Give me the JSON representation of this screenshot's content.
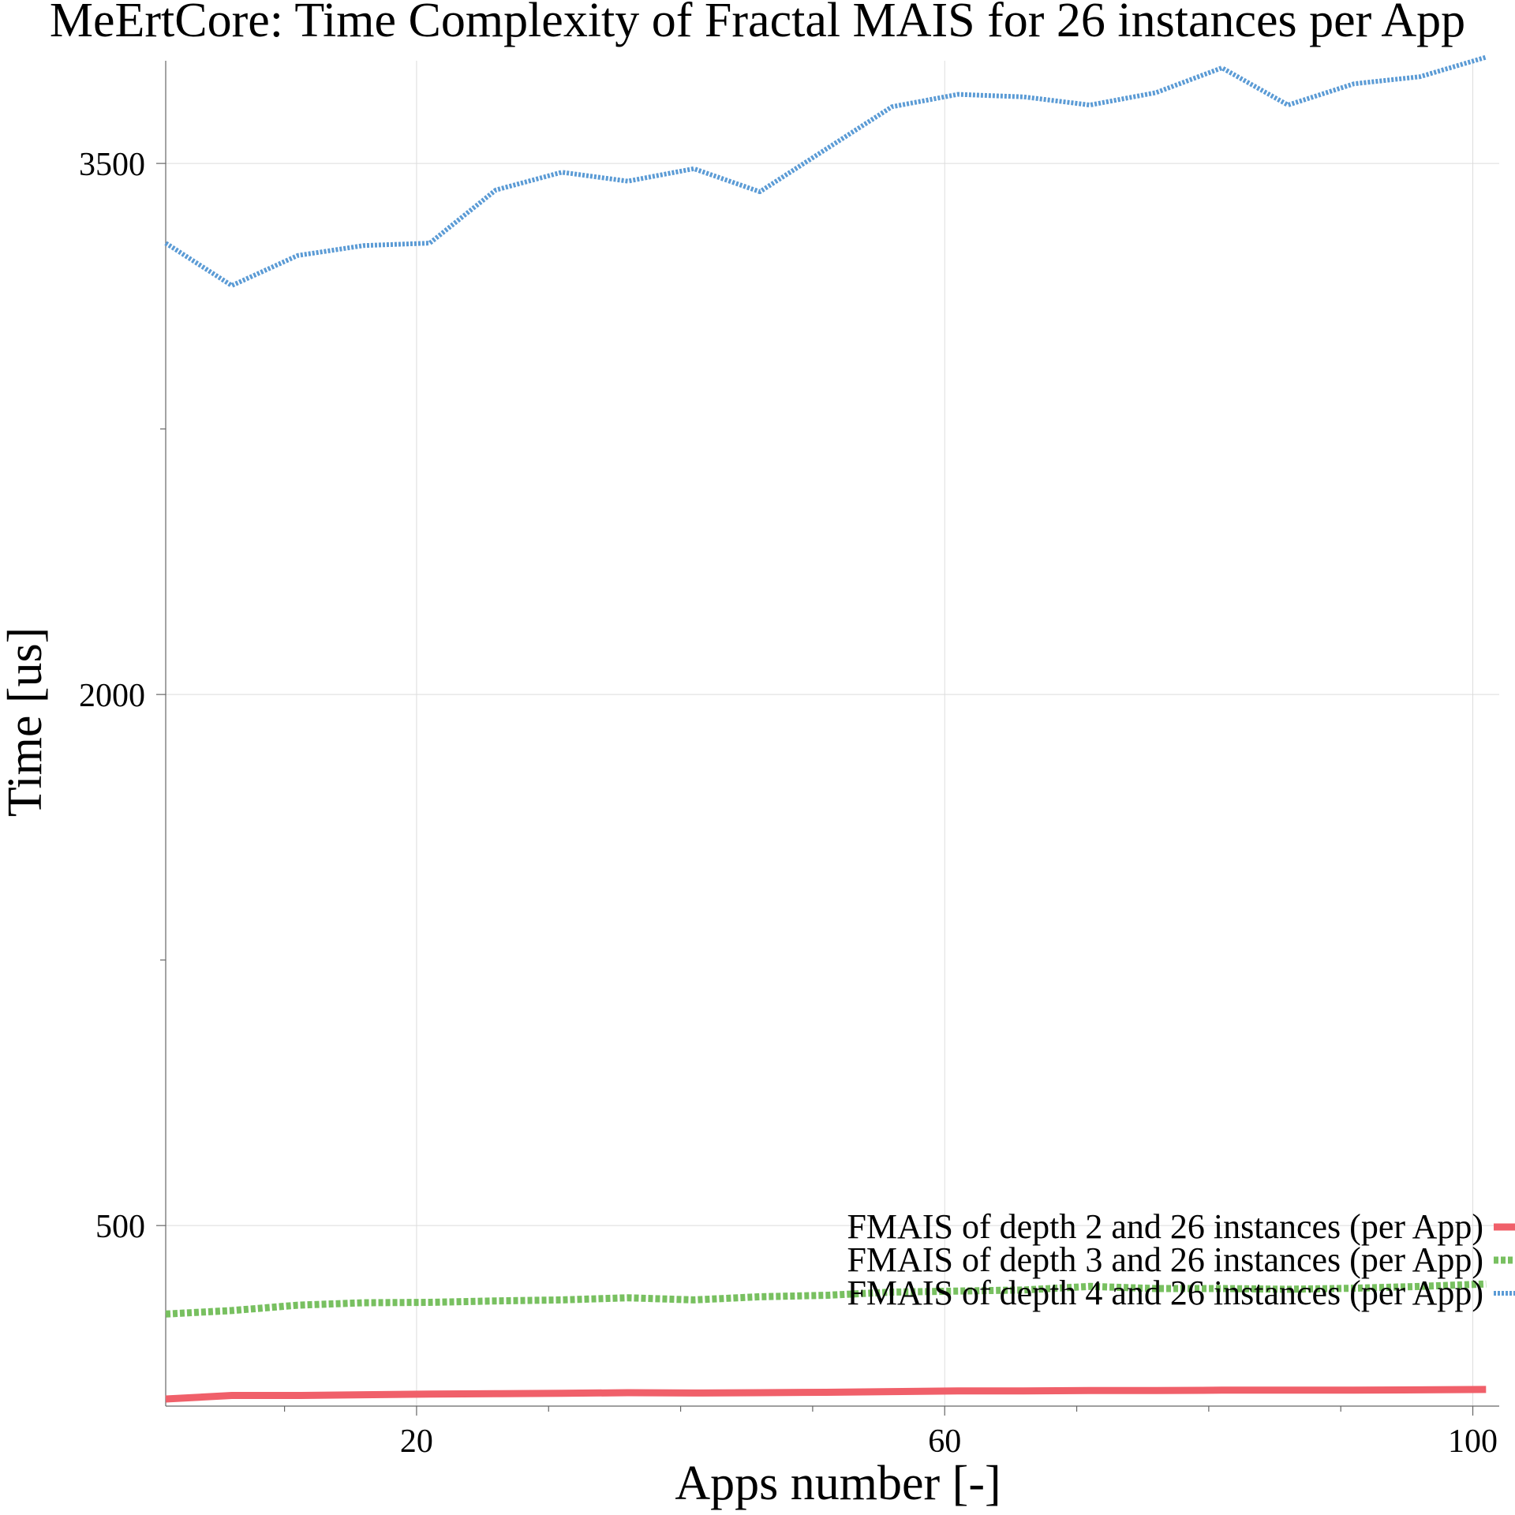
{
  "chart_data": {
    "type": "line",
    "title": "MeErtCore: Time Complexity of Fractal MAIS for 26 instances per App",
    "xlabel": "Apps number [-]",
    "ylabel": "Time [us]",
    "xlim": [
      1,
      102
    ],
    "ylim": [
      -10,
      3790
    ],
    "x_ticks": [
      20,
      60,
      100
    ],
    "x_minor_ticks": [
      10,
      30,
      40,
      50,
      70,
      80,
      90
    ],
    "y_ticks": [
      500,
      2000,
      3500
    ],
    "y_minor_ticks": [
      1250,
      2750
    ],
    "grid": true,
    "legend_position": "lower-right",
    "x": [
      1,
      6,
      11,
      16,
      21,
      26,
      31,
      36,
      41,
      46,
      51,
      56,
      61,
      66,
      71,
      76,
      81,
      86,
      91,
      96,
      101
    ],
    "series": [
      {
        "name": "FMAIS of depth 2 and 26 instances (per App)",
        "color": "#f0606a",
        "style": "solid",
        "values": [
          10,
          20,
          20,
          22,
          24,
          25,
          26,
          28,
          27,
          28,
          29,
          31,
          33,
          33,
          34,
          34,
          35,
          35,
          35,
          36,
          37
        ]
      },
      {
        "name": "FMAIS of depth 3 and 26 instances (per App)",
        "color": "#78c060",
        "style": "dashed",
        "values": [
          250,
          260,
          275,
          282,
          283,
          287,
          290,
          296,
          290,
          299,
          303,
          312,
          315,
          318,
          328,
          322,
          322,
          320,
          323,
          328,
          335
        ]
      },
      {
        "name": "FMAIS of depth 4 and 26 instances (per App)",
        "color": "#5b9bd5",
        "style": "dotted",
        "values": [
          3275,
          3155,
          3240,
          3268,
          3275,
          3425,
          3475,
          3450,
          3485,
          3420,
          3540,
          3660,
          3695,
          3688,
          3665,
          3700,
          3770,
          3665,
          3725,
          3745,
          3800
        ]
      }
    ]
  }
}
